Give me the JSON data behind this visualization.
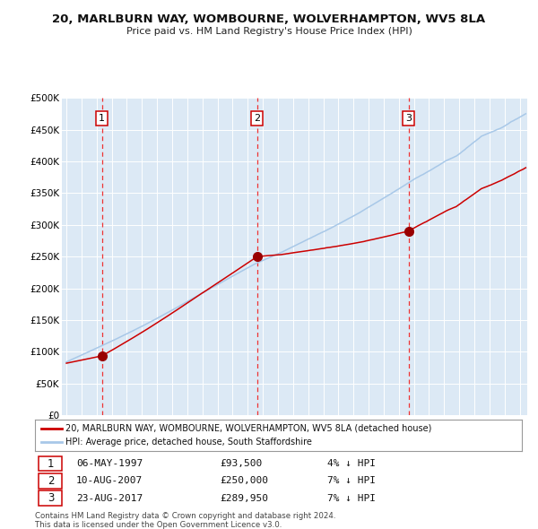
{
  "title": "20, MARLBURN WAY, WOMBOURNE, WOLVERHAMPTON, WV5 8LA",
  "subtitle": "Price paid vs. HM Land Registry's House Price Index (HPI)",
  "transactions": [
    {
      "num": 1,
      "date": "06-MAY-1997",
      "price": 93500,
      "price_str": "£93,500",
      "pct": "4% ↓ HPI",
      "year_x": 1997.35
    },
    {
      "num": 2,
      "date": "10-AUG-2007",
      "price": 250000,
      "price_str": "£250,000",
      "pct": "7% ↓ HPI",
      "year_x": 2007.61
    },
    {
      "num": 3,
      "date": "23-AUG-2017",
      "price": 289950,
      "price_str": "£289,950",
      "pct": "7% ↓ HPI",
      "year_x": 2017.64
    }
  ],
  "hpi_color": "#a8c8e8",
  "price_color": "#cc0000",
  "marker_color": "#990000",
  "dashed_line_color": "#ee3333",
  "plot_bg": "#dce9f5",
  "fig_bg": "#ffffff",
  "grid_color": "#ffffff",
  "ylim": [
    0,
    500000
  ],
  "xlim_start": 1994.7,
  "xlim_end": 2025.5,
  "yticks": [
    0,
    50000,
    100000,
    150000,
    200000,
    250000,
    300000,
    350000,
    400000,
    450000,
    500000
  ],
  "ytick_labels": [
    "£0",
    "£50K",
    "£100K",
    "£150K",
    "£200K",
    "£250K",
    "£300K",
    "£350K",
    "£400K",
    "£450K",
    "£500K"
  ],
  "xticks": [
    1995,
    1996,
    1997,
    1998,
    1999,
    2000,
    2001,
    2002,
    2003,
    2004,
    2005,
    2006,
    2007,
    2008,
    2009,
    2010,
    2011,
    2012,
    2013,
    2014,
    2015,
    2016,
    2017,
    2018,
    2019,
    2020,
    2021,
    2022,
    2023,
    2024,
    2025
  ],
  "legend_label_red": "20, MARLBURN WAY, WOMBOURNE, WOLVERHAMPTON, WV5 8LA (detached house)",
  "legend_label_blue": "HPI: Average price, detached house, South Staffordshire",
  "footer1": "Contains HM Land Registry data © Crown copyright and database right 2024.",
  "footer2": "This data is licensed under the Open Government Licence v3.0."
}
